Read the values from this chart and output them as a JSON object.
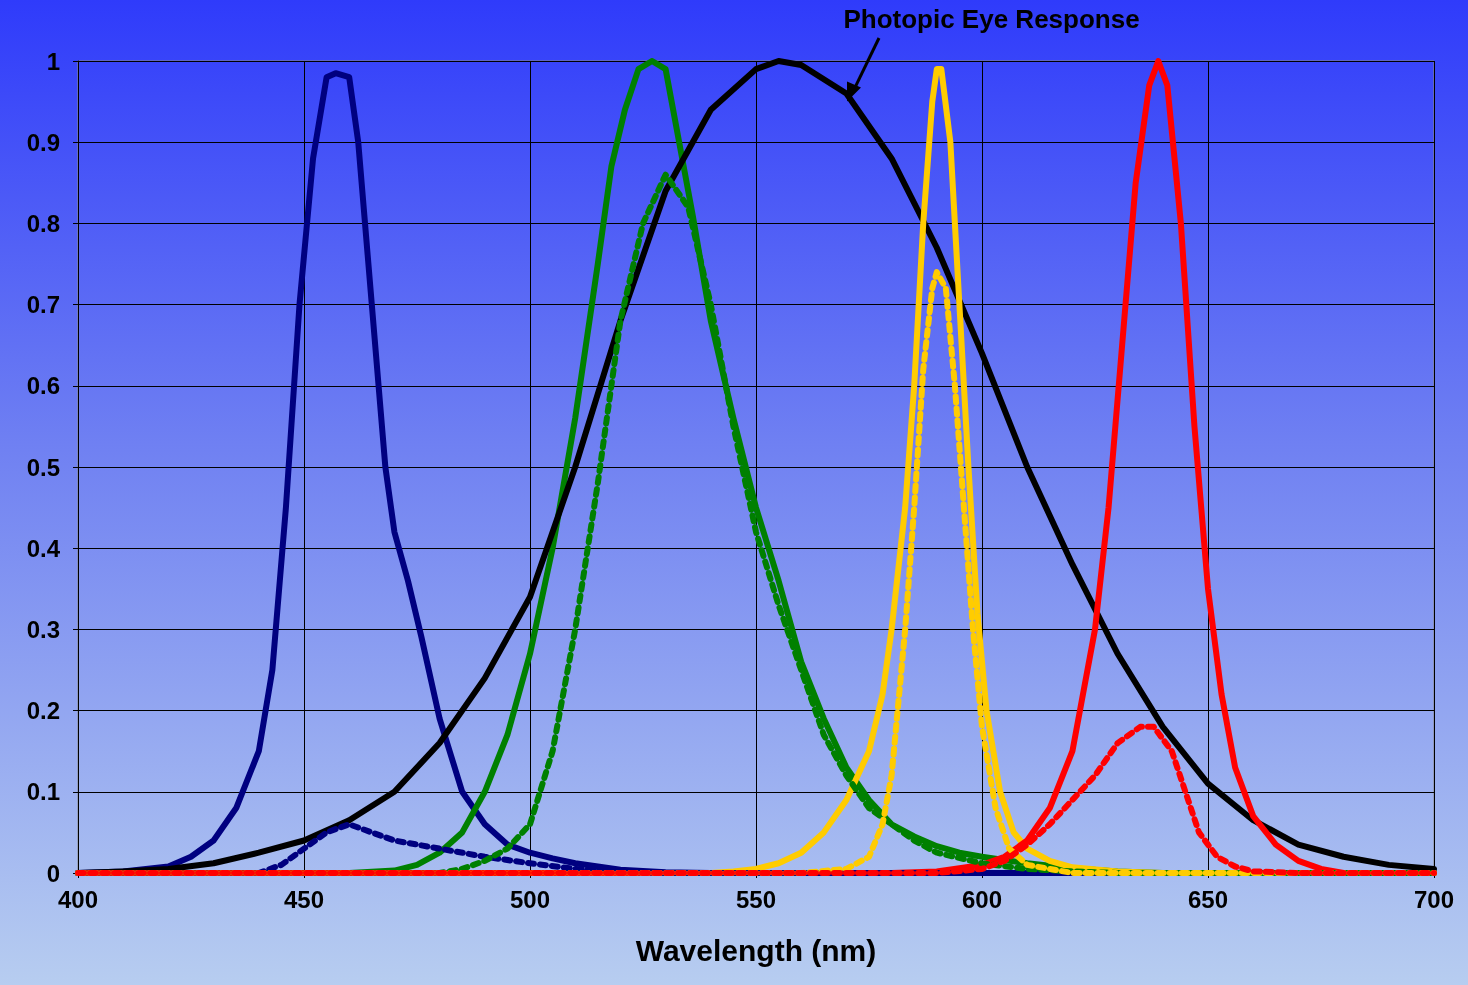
{
  "chart_data": {
    "type": "line",
    "xlabel": "Wavelength (nm)",
    "xlim": [
      400,
      700
    ],
    "xticks": [
      400,
      450,
      500,
      550,
      600,
      650,
      700
    ],
    "ylim": [
      0,
      1
    ],
    "yticks": [
      0,
      0.1,
      0.2,
      0.3,
      0.4,
      0.5,
      0.6,
      0.7,
      0.8,
      0.9,
      1
    ],
    "grid": true,
    "legend": false,
    "marker": "none",
    "line_style": "solid",
    "annotations": [
      {
        "text": "Photopic Eye Response",
        "x": 572,
        "y": 0.95
      }
    ],
    "series": [
      {
        "color": "#000080",
        "x": [
          400,
          410,
          420,
          425,
          430,
          435,
          440,
          443,
          446,
          449,
          452,
          455,
          457,
          460,
          462,
          465,
          468,
          470,
          473,
          476,
          480,
          485,
          490,
          495,
          500,
          505,
          510,
          515,
          520,
          530,
          540,
          700
        ],
        "values": [
          0,
          0.002,
          0.008,
          0.02,
          0.04,
          0.08,
          0.15,
          0.25,
          0.45,
          0.7,
          0.88,
          0.98,
          0.985,
          0.98,
          0.9,
          0.7,
          0.5,
          0.42,
          0.36,
          0.29,
          0.19,
          0.1,
          0.06,
          0.035,
          0.025,
          0.018,
          0.012,
          0.008,
          0.004,
          0.001,
          0,
          0
        ]
      },
      {
        "color": "#000080",
        "line_style": "dotted",
        "x": [
          400,
          440,
          445,
          450,
          455,
          460,
          465,
          470,
          475,
          480,
          490,
          500,
          510,
          520,
          530,
          700
        ],
        "values": [
          0,
          0,
          0.01,
          0.03,
          0.05,
          0.06,
          0.05,
          0.04,
          0.035,
          0.03,
          0.02,
          0.012,
          0.005,
          0.002,
          0,
          0
        ]
      },
      {
        "color": "#008000",
        "x": [
          400,
          460,
          470,
          475,
          480,
          485,
          490,
          495,
          500,
          505,
          510,
          515,
          518,
          521,
          524,
          527,
          530,
          533,
          536,
          540,
          545,
          550,
          555,
          560,
          565,
          570,
          575,
          580,
          585,
          590,
          595,
          600,
          610,
          620,
          630,
          640,
          700
        ],
        "values": [
          0,
          0,
          0.003,
          0.01,
          0.025,
          0.05,
          0.1,
          0.17,
          0.27,
          0.4,
          0.56,
          0.75,
          0.87,
          0.94,
          0.99,
          1,
          0.99,
          0.9,
          0.81,
          0.68,
          0.56,
          0.45,
          0.36,
          0.26,
          0.19,
          0.13,
          0.09,
          0.06,
          0.045,
          0.033,
          0.025,
          0.02,
          0.012,
          0.006,
          0.002,
          0,
          0
        ]
      },
      {
        "color": "#008000",
        "line_style": "dotted",
        "x": [
          400,
          480,
          485,
          490,
          495,
          500,
          505,
          510,
          515,
          520,
          525,
          530,
          535,
          540,
          545,
          550,
          555,
          560,
          565,
          570,
          575,
          580,
          585,
          590,
          600,
          610,
          620,
          630,
          700
        ],
        "values": [
          0,
          0,
          0.005,
          0.015,
          0.03,
          0.06,
          0.15,
          0.3,
          0.48,
          0.68,
          0.8,
          0.86,
          0.82,
          0.7,
          0.55,
          0.42,
          0.33,
          0.25,
          0.17,
          0.12,
          0.08,
          0.06,
          0.04,
          0.025,
          0.012,
          0.005,
          0.002,
          0,
          0
        ]
      },
      {
        "color": "#000000",
        "x": [
          400,
          410,
          420,
          430,
          440,
          450,
          460,
          470,
          480,
          490,
          500,
          510,
          520,
          530,
          540,
          550,
          555,
          560,
          570,
          580,
          590,
          600,
          610,
          620,
          630,
          640,
          650,
          660,
          670,
          680,
          690,
          700
        ],
        "values": [
          0,
          0.002,
          0.005,
          0.012,
          0.025,
          0.04,
          0.065,
          0.1,
          0.16,
          0.24,
          0.34,
          0.5,
          0.68,
          0.84,
          0.94,
          0.99,
          1,
          0.995,
          0.96,
          0.88,
          0.77,
          0.64,
          0.5,
          0.38,
          0.27,
          0.18,
          0.11,
          0.065,
          0.035,
          0.02,
          0.01,
          0.005
        ]
      },
      {
        "color": "#ffcc00",
        "x": [
          400,
          540,
          545,
          550,
          555,
          560,
          565,
          570,
          575,
          578,
          580,
          583,
          585,
          587,
          589,
          590,
          591,
          593,
          595,
          597,
          599,
          601,
          604,
          607,
          610,
          615,
          620,
          630,
          640,
          700
        ],
        "values": [
          0,
          0,
          0.002,
          0.005,
          0.012,
          0.025,
          0.05,
          0.09,
          0.15,
          0.22,
          0.3,
          0.45,
          0.6,
          0.8,
          0.95,
          0.99,
          0.99,
          0.9,
          0.7,
          0.5,
          0.32,
          0.2,
          0.1,
          0.05,
          0.03,
          0.015,
          0.007,
          0.002,
          0,
          0
        ]
      },
      {
        "color": "#ffcc00",
        "line_style": "dotted",
        "x": [
          400,
          560,
          570,
          575,
          578,
          580,
          583,
          585,
          587,
          589,
          590,
          592,
          594,
          596,
          598,
          600,
          603,
          606,
          610,
          620,
          700
        ],
        "values": [
          0,
          0,
          0.005,
          0.02,
          0.06,
          0.12,
          0.3,
          0.45,
          0.62,
          0.72,
          0.74,
          0.72,
          0.6,
          0.45,
          0.3,
          0.18,
          0.08,
          0.03,
          0.01,
          0,
          0
        ]
      },
      {
        "color": "#ff0000",
        "x": [
          400,
          580,
          590,
          600,
          605,
          610,
          615,
          620,
          625,
          628,
          631,
          634,
          637,
          639,
          641,
          644,
          647,
          650,
          653,
          656,
          660,
          665,
          670,
          675,
          680,
          700
        ],
        "values": [
          0,
          0,
          0.002,
          0.01,
          0.02,
          0.04,
          0.08,
          0.15,
          0.3,
          0.45,
          0.65,
          0.85,
          0.97,
          1,
          0.97,
          0.8,
          0.55,
          0.35,
          0.22,
          0.13,
          0.07,
          0.035,
          0.015,
          0.005,
          0,
          0
        ]
      },
      {
        "color": "#ff0000",
        "line_style": "dotted",
        "x": [
          400,
          590,
          600,
          605,
          610,
          615,
          620,
          625,
          630,
          635,
          638,
          642,
          645,
          648,
          652,
          656,
          660,
          670,
          700
        ],
        "values": [
          0,
          0,
          0.005,
          0.015,
          0.035,
          0.06,
          0.09,
          0.12,
          0.16,
          0.18,
          0.18,
          0.15,
          0.1,
          0.05,
          0.02,
          0.008,
          0.002,
          0,
          0
        ]
      }
    ]
  }
}
